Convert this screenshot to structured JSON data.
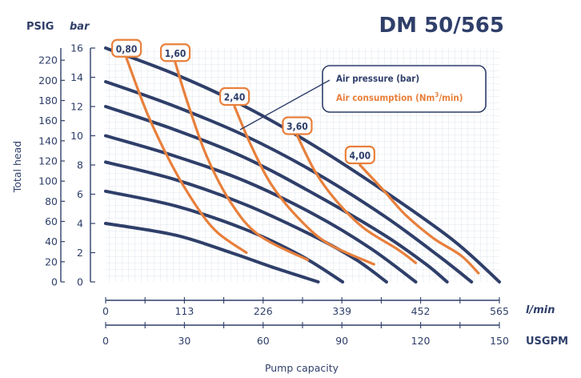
{
  "chart_data": {
    "type": "line",
    "title": "DM 50/565",
    "ylabel": "Total head",
    "xlabel": "Pump capacity",
    "y_unit_left": "PSIG",
    "y_unit_right": "bar",
    "x_unit_top": "l/min",
    "x_unit_bottom": "USGPM",
    "psig_ticks": [
      "0",
      "20",
      "40",
      "60",
      "80",
      "100",
      "120",
      "140",
      "160",
      "180",
      "200",
      "220"
    ],
    "bar_ticks": [
      "0",
      "2",
      "4",
      "6",
      "8",
      "10",
      "12",
      "14",
      "16"
    ],
    "lmin_ticks": [
      "0",
      "113",
      "226",
      "339",
      "452",
      "565"
    ],
    "usgpm_ticks": [
      "0",
      "30",
      "60",
      "90",
      "120",
      "150"
    ],
    "xlim": [
      0,
      565
    ],
    "ylim": [
      0,
      16
    ],
    "legend": {
      "air_pressure": "Air pressure (bar)",
      "air_consumption": "Air consumption (Nm",
      "air_consumption_sup": "3",
      "air_consumption_end": "/min)",
      "placement": "top-right"
    },
    "air_pressure_curves": [
      {
        "points": [
          [
            0,
            16
          ],
          [
            100,
            14.2
          ],
          [
            200,
            12.0
          ],
          [
            300,
            9.3
          ],
          [
            400,
            6.2
          ],
          [
            500,
            2.8
          ],
          [
            565,
            0
          ]
        ]
      },
      {
        "points": [
          [
            0,
            13.7
          ],
          [
            100,
            12.0
          ],
          [
            200,
            10.0
          ],
          [
            300,
            7.5
          ],
          [
            400,
            4.5
          ],
          [
            480,
            1.7
          ],
          [
            525,
            0
          ]
        ]
      },
      {
        "points": [
          [
            0,
            12.0
          ],
          [
            100,
            10.4
          ],
          [
            200,
            8.5
          ],
          [
            300,
            6.0
          ],
          [
            400,
            3.2
          ],
          [
            460,
            1.2
          ],
          [
            490,
            0
          ]
        ]
      },
      {
        "points": [
          [
            0,
            10.0
          ],
          [
            100,
            8.6
          ],
          [
            200,
            6.9
          ],
          [
            300,
            4.6
          ],
          [
            380,
            2.3
          ],
          [
            445,
            0
          ]
        ]
      },
      {
        "points": [
          [
            0,
            8.2
          ],
          [
            100,
            7.0
          ],
          [
            200,
            5.3
          ],
          [
            300,
            3.1
          ],
          [
            360,
            1.5
          ],
          [
            403,
            0
          ]
        ]
      },
      {
        "points": [
          [
            0,
            6.2
          ],
          [
            100,
            5.2
          ],
          [
            200,
            3.6
          ],
          [
            280,
            1.8
          ],
          [
            340,
            0
          ]
        ]
      },
      {
        "points": [
          [
            0,
            4.0
          ],
          [
            100,
            3.2
          ],
          [
            180,
            2.0
          ],
          [
            240,
            1.0
          ],
          [
            305,
            0
          ]
        ]
      }
    ],
    "air_consumption_curves": [
      {
        "label": "0,80",
        "points": [
          [
            30,
            15.3
          ],
          [
            60,
            11.5
          ],
          [
            95,
            8.0
          ],
          [
            130,
            5.2
          ],
          [
            160,
            3.4
          ],
          [
            202,
            2.0
          ]
        ]
      },
      {
        "label": "1,60",
        "points": [
          [
            100,
            15.0
          ],
          [
            118,
            12.2
          ],
          [
            145,
            8.6
          ],
          [
            180,
            5.4
          ],
          [
            220,
            3.2
          ],
          [
            290,
            1.5
          ]
        ]
      },
      {
        "label": "2,40",
        "points": [
          [
            185,
            12.0
          ],
          [
            210,
            9.2
          ],
          [
            240,
            6.5
          ],
          [
            280,
            4.2
          ],
          [
            320,
            2.6
          ],
          [
            385,
            1.2
          ]
        ]
      },
      {
        "label": "3,60",
        "points": [
          [
            275,
            10.0
          ],
          [
            300,
            7.6
          ],
          [
            330,
            5.6
          ],
          [
            370,
            3.7
          ],
          [
            420,
            2.2
          ],
          [
            445,
            1.3
          ]
        ]
      },
      {
        "label": "4,00",
        "points": [
          [
            365,
            8.0
          ],
          [
            400,
            6.2
          ],
          [
            430,
            4.6
          ],
          [
            470,
            3.0
          ],
          [
            510,
            1.8
          ],
          [
            535,
            0.6
          ]
        ]
      }
    ]
  }
}
